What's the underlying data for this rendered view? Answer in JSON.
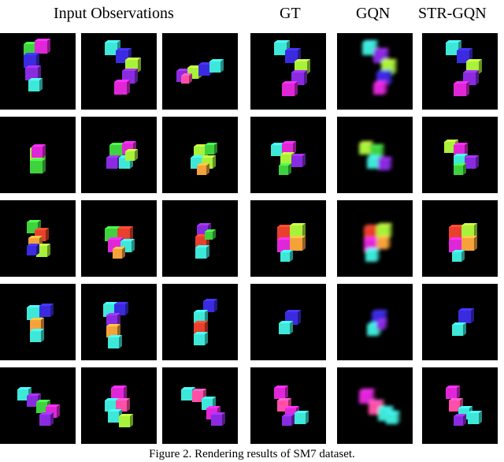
{
  "headers": {
    "input": "Input Observations",
    "gt": "GT",
    "gqn": "GQN",
    "str_gqn": "STR-GQN"
  },
  "caption": "Figure 2. Rendering results of SM7 dataset.",
  "palette": {
    "green": "#3fd23f",
    "magenta": "#e027d8",
    "blue": "#3a2be0",
    "purple": "#8a2be2",
    "cyan": "#3ee8d8",
    "lime": "#a8f23a",
    "red": "#e8402c",
    "orange": "#f5a23a",
    "pink": "#ff4fa8",
    "background": "#000000"
  },
  "rows": [
    {
      "row": 1,
      "columns": [
        "input-1",
        "input-2",
        "input-3",
        "gt",
        "gqn",
        "str-gqn"
      ]
    },
    {
      "row": 2,
      "columns": [
        "input-1",
        "input-2",
        "input-3",
        "gt",
        "gqn",
        "str-gqn"
      ]
    },
    {
      "row": 3,
      "columns": [
        "input-1",
        "input-2",
        "input-3",
        "gt",
        "gqn",
        "str-gqn"
      ]
    },
    {
      "row": 4,
      "columns": [
        "input-1",
        "input-2",
        "input-3",
        "gt",
        "gqn",
        "str-gqn"
      ]
    },
    {
      "row": 5,
      "columns": [
        "input-1",
        "input-2",
        "input-3",
        "gt",
        "gqn",
        "str-gqn"
      ]
    }
  ]
}
